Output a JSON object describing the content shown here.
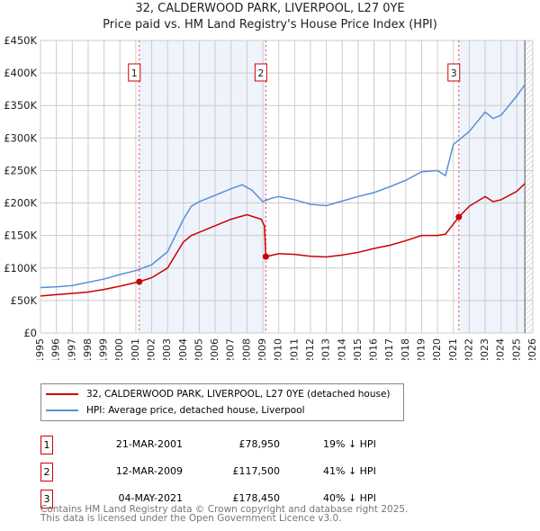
{
  "title": "32, CALDERWOOD PARK, LIVERPOOL, L27 0YE",
  "subtitle": "Price paid vs. HM Land Registry's House Price Index (HPI)",
  "chart_data": {
    "type": "line",
    "title": "32, CALDERWOOD PARK, LIVERPOOL, L27 0YE",
    "subtitle": "Price paid vs. HM Land Registry's House Price Index (HPI)",
    "xlim": [
      1995,
      2026
    ],
    "ylim": [
      0,
      450000
    ],
    "grid": true,
    "x_ticks": [
      "1995",
      "1996",
      "1997",
      "1998",
      "1999",
      "2000",
      "2001",
      "2002",
      "2003",
      "2004",
      "2005",
      "2006",
      "2007",
      "2008",
      "2009",
      "2010",
      "2011",
      "2012",
      "2013",
      "2014",
      "2015",
      "2016",
      "2017",
      "2018",
      "2019",
      "2020",
      "2021",
      "2022",
      "2023",
      "2024",
      "2025",
      "2026"
    ],
    "y_ticks": [
      {
        "v": 0,
        "l": "£0"
      },
      {
        "v": 50000,
        "l": "£50K"
      },
      {
        "v": 100000,
        "l": "£100K"
      },
      {
        "v": 150000,
        "l": "£150K"
      },
      {
        "v": 200000,
        "l": "£200K"
      },
      {
        "v": 250000,
        "l": "£250K"
      },
      {
        "v": 300000,
        "l": "£300K"
      },
      {
        "v": 350000,
        "l": "£350K"
      },
      {
        "v": 400000,
        "l": "£400K"
      },
      {
        "v": 450000,
        "l": "£450K"
      }
    ],
    "shaded_ranges": [
      [
        2001.22,
        2009.19
      ],
      [
        2021.34,
        2025.5
      ]
    ],
    "hatched_from": 2025.5,
    "series": [
      {
        "name": "32, CALDERWOOD PARK, LIVERPOOL, L27 0YE (detached house)",
        "color": "#cc0000",
        "x": [
          1995,
          1996,
          1997,
          1998,
          1999,
          2000,
          2001.22,
          2002,
          2003,
          2004,
          2004.5,
          2005,
          2006,
          2007,
          2008,
          2008.9,
          2009.1,
          2009.19,
          2010,
          2011,
          2012,
          2013,
          2014,
          2015,
          2016,
          2017,
          2018,
          2019,
          2020,
          2020.5,
          2021.34,
          2022,
          2023,
          2023.5,
          2024,
          2025,
          2025.5
        ],
        "y": [
          57000,
          59000,
          61000,
          63000,
          67000,
          72000,
          78950,
          85000,
          100000,
          140000,
          150000,
          155000,
          165000,
          175000,
          182000,
          175000,
          165000,
          117500,
          122000,
          121000,
          118000,
          117000,
          120000,
          124000,
          130000,
          135000,
          142000,
          150000,
          150000,
          152000,
          178450,
          195000,
          210000,
          202000,
          205000,
          218000,
          230000
        ]
      },
      {
        "name": "HPI: Average price, detached house, Liverpool",
        "color": "#5b8fd6",
        "x": [
          1995,
          1996,
          1997,
          1998,
          1999,
          2000,
          2001,
          2002,
          2003,
          2004,
          2004.5,
          2005,
          2006,
          2007,
          2007.7,
          2008.3,
          2009,
          2009.5,
          2010,
          2011,
          2012,
          2013,
          2014,
          2015,
          2016,
          2017,
          2018,
          2019,
          2020,
          2020.5,
          2021,
          2022,
          2023,
          2023.5,
          2024,
          2025,
          2025.5
        ],
        "y": [
          70000,
          71000,
          73000,
          78000,
          83000,
          90000,
          96000,
          105000,
          125000,
          175000,
          195000,
          202000,
          212000,
          222000,
          228000,
          220000,
          202000,
          207000,
          210000,
          205000,
          198000,
          196000,
          203000,
          210000,
          216000,
          225000,
          235000,
          248000,
          250000,
          242000,
          290000,
          310000,
          340000,
          330000,
          335000,
          365000,
          382000
        ]
      }
    ],
    "markers": [
      {
        "label": "1",
        "x": 2001.22,
        "y": 78950
      },
      {
        "label": "2",
        "x": 2009.19,
        "y": 117500
      },
      {
        "label": "3",
        "x": 2021.34,
        "y": 178450
      }
    ]
  },
  "legend": {
    "items": [
      {
        "label": "32, CALDERWOOD PARK, LIVERPOOL, L27 0YE (detached house)",
        "color": "#cc0000"
      },
      {
        "label": "HPI: Average price, detached house, Liverpool",
        "color": "#5b8fd6"
      }
    ]
  },
  "transactions": [
    {
      "num": "1",
      "date": "21-MAR-2001",
      "price": "£78,950",
      "hpi": "19% ↓ HPI"
    },
    {
      "num": "2",
      "date": "12-MAR-2009",
      "price": "£117,500",
      "hpi": "41% ↓ HPI"
    },
    {
      "num": "3",
      "date": "04-MAY-2021",
      "price": "£178,450",
      "hpi": "40% ↓ HPI"
    }
  ],
  "footer": {
    "line1": "Contains HM Land Registry data © Crown copyright and database right 2025.",
    "line2": "This data is licensed under the Open Government Licence v3.0."
  }
}
